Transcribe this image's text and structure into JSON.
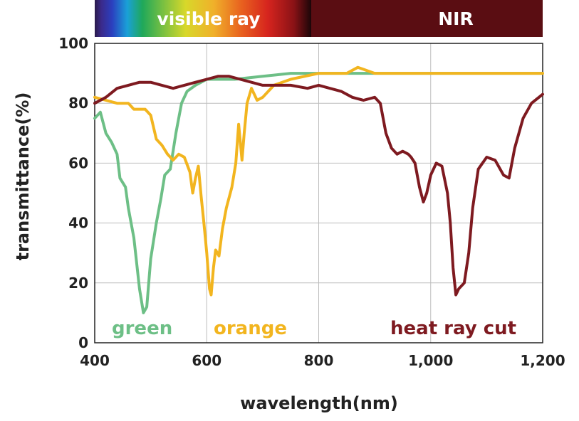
{
  "chart_data": {
    "type": "line",
    "title": "",
    "xlabel": "wavelength(nm)",
    "ylabel": "transmittance(%)",
    "xlim": [
      400,
      1200
    ],
    "ylim": [
      0,
      100
    ],
    "grid": true,
    "x_ticks": [
      {
        "value": 400,
        "label": "400"
      },
      {
        "value": 600,
        "label": "600"
      },
      {
        "value": 800,
        "label": "800"
      },
      {
        "value": 1000,
        "label": "1,000"
      },
      {
        "value": 1200,
        "label": "1,200"
      }
    ],
    "y_ticks": [
      {
        "value": 0,
        "label": "0"
      },
      {
        "value": 20,
        "label": "20"
      },
      {
        "value": 40,
        "label": "40"
      },
      {
        "value": 60,
        "label": "60"
      },
      {
        "value": 80,
        "label": "80"
      },
      {
        "value": 100,
        "label": "100"
      }
    ],
    "bands": [
      {
        "label": "visible ray",
        "range": [
          400,
          780
        ],
        "style": "spectrum"
      },
      {
        "label": "NIR",
        "range": [
          780,
          1200
        ],
        "color": "#5a0d12"
      }
    ],
    "series": [
      {
        "name": "green",
        "color": "#6dbf86",
        "points": [
          [
            400,
            75
          ],
          [
            410,
            77
          ],
          [
            420,
            70
          ],
          [
            430,
            67
          ],
          [
            440,
            63
          ],
          [
            445,
            55
          ],
          [
            455,
            52
          ],
          [
            460,
            45
          ],
          [
            470,
            35
          ],
          [
            480,
            18
          ],
          [
            487,
            10
          ],
          [
            493,
            12
          ],
          [
            500,
            28
          ],
          [
            510,
            40
          ],
          [
            518,
            48
          ],
          [
            525,
            56
          ],
          [
            535,
            58
          ],
          [
            545,
            70
          ],
          [
            555,
            80
          ],
          [
            565,
            84
          ],
          [
            580,
            86
          ],
          [
            600,
            88
          ],
          [
            620,
            88
          ],
          [
            650,
            88
          ],
          [
            700,
            89
          ],
          [
            750,
            90
          ],
          [
            800,
            90
          ],
          [
            850,
            90
          ],
          [
            900,
            90
          ],
          [
            950,
            90
          ],
          [
            1000,
            90
          ],
          [
            1050,
            90
          ],
          [
            1100,
            90
          ],
          [
            1150,
            90
          ],
          [
            1200,
            90
          ]
        ]
      },
      {
        "name": "orange",
        "color": "#f2b51f",
        "points": [
          [
            400,
            82
          ],
          [
            420,
            81
          ],
          [
            440,
            80
          ],
          [
            460,
            80
          ],
          [
            470,
            78
          ],
          [
            490,
            78
          ],
          [
            500,
            76
          ],
          [
            510,
            68
          ],
          [
            520,
            66
          ],
          [
            530,
            63
          ],
          [
            540,
            61
          ],
          [
            550,
            63
          ],
          [
            560,
            62
          ],
          [
            570,
            57
          ],
          [
            575,
            50
          ],
          [
            580,
            55
          ],
          [
            585,
            59
          ],
          [
            590,
            49
          ],
          [
            595,
            40
          ],
          [
            600,
            30
          ],
          [
            605,
            18
          ],
          [
            608,
            16
          ],
          [
            612,
            25
          ],
          [
            616,
            31
          ],
          [
            622,
            29
          ],
          [
            628,
            38
          ],
          [
            635,
            45
          ],
          [
            645,
            52
          ],
          [
            652,
            60
          ],
          [
            657,
            73
          ],
          [
            663,
            61
          ],
          [
            667,
            70
          ],
          [
            672,
            80
          ],
          [
            680,
            85
          ],
          [
            690,
            81
          ],
          [
            700,
            82
          ],
          [
            720,
            86
          ],
          [
            750,
            88
          ],
          [
            800,
            90
          ],
          [
            850,
            90
          ],
          [
            870,
            92
          ],
          [
            900,
            90
          ],
          [
            950,
            90
          ],
          [
            1000,
            90
          ],
          [
            1050,
            90
          ],
          [
            1100,
            90
          ],
          [
            1150,
            90
          ],
          [
            1200,
            90
          ]
        ]
      },
      {
        "name": "heat ray cut",
        "color": "#7e1a20",
        "points": [
          [
            400,
            80
          ],
          [
            420,
            82
          ],
          [
            440,
            85
          ],
          [
            460,
            86
          ],
          [
            480,
            87
          ],
          [
            500,
            87
          ],
          [
            520,
            86
          ],
          [
            540,
            85
          ],
          [
            560,
            86
          ],
          [
            580,
            87
          ],
          [
            600,
            88
          ],
          [
            620,
            89
          ],
          [
            640,
            89
          ],
          [
            660,
            88
          ],
          [
            680,
            87
          ],
          [
            700,
            86
          ],
          [
            720,
            86
          ],
          [
            750,
            86
          ],
          [
            780,
            85
          ],
          [
            800,
            86
          ],
          [
            820,
            85
          ],
          [
            840,
            84
          ],
          [
            860,
            82
          ],
          [
            880,
            81
          ],
          [
            900,
            82
          ],
          [
            910,
            80
          ],
          [
            920,
            70
          ],
          [
            930,
            65
          ],
          [
            940,
            63
          ],
          [
            950,
            64
          ],
          [
            960,
            63
          ],
          [
            965,
            62
          ],
          [
            972,
            60
          ],
          [
            980,
            52
          ],
          [
            987,
            47
          ],
          [
            993,
            50
          ],
          [
            1000,
            56
          ],
          [
            1010,
            60
          ],
          [
            1020,
            59
          ],
          [
            1030,
            50
          ],
          [
            1035,
            40
          ],
          [
            1040,
            25
          ],
          [
            1045,
            16
          ],
          [
            1050,
            18
          ],
          [
            1060,
            20
          ],
          [
            1068,
            30
          ],
          [
            1075,
            45
          ],
          [
            1085,
            58
          ],
          [
            1100,
            62
          ],
          [
            1115,
            61
          ],
          [
            1130,
            56
          ],
          [
            1140,
            55
          ],
          [
            1150,
            65
          ],
          [
            1165,
            75
          ],
          [
            1180,
            80
          ],
          [
            1200,
            83
          ]
        ]
      }
    ],
    "annotations": [
      {
        "text": "green",
        "series": "green"
      },
      {
        "text": "orange",
        "series": "orange"
      },
      {
        "text": "heat ray cut",
        "series": "heat ray cut"
      }
    ]
  }
}
